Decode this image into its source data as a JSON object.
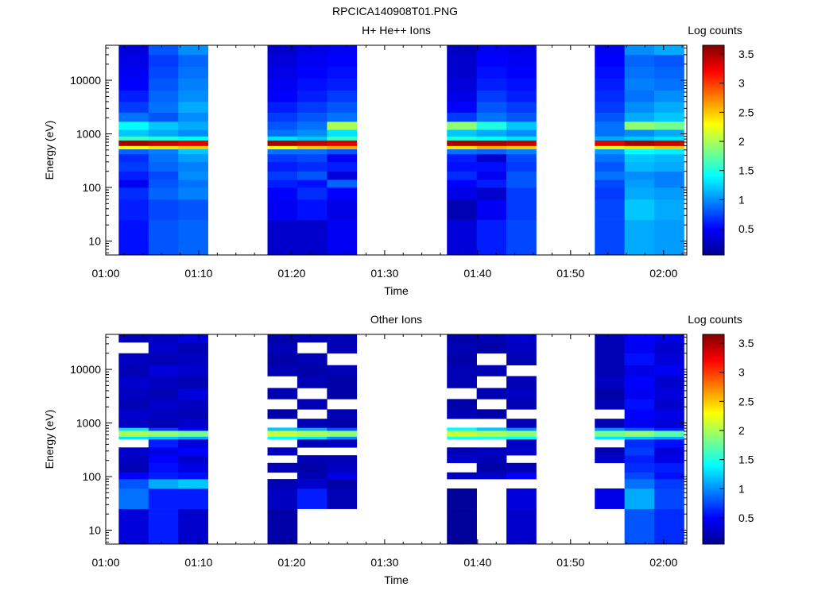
{
  "figure_title": "RPCICA140908T01.PNG",
  "colormap": [
    "#00008f",
    "#0000ff",
    "#0080ff",
    "#00ffff",
    "#80ff80",
    "#ffff00",
    "#ff8000",
    "#ff0000",
    "#800000"
  ],
  "chart_data": [
    {
      "type": "heatmap",
      "title": "H+ He++ Ions",
      "xlabel": "Time",
      "ylabel": "Energy (eV)",
      "x_ticks": [
        "01:00",
        "01:10",
        "01:20",
        "01:30",
        "01:40",
        "01:50",
        "02:00"
      ],
      "x_tick_minutes": [
        0,
        10,
        20,
        30,
        40,
        50,
        60
      ],
      "xlim_minutes": [
        0,
        62.5
      ],
      "y_scale": "log",
      "y_ticks": [
        "10",
        "100",
        "1000",
        "10000"
      ],
      "y_tick_values": [
        10,
        100,
        1000,
        10000
      ],
      "ylim": [
        5.5,
        45000
      ],
      "colorbar": {
        "label": "Log counts",
        "ticks": [
          "0.5",
          "1",
          "1.5",
          "2",
          "2.5",
          "3",
          "3.5"
        ],
        "tick_values": [
          0.5,
          1,
          1.5,
          2,
          2.5,
          3,
          3.5
        ],
        "range": [
          0.05,
          3.65
        ]
      },
      "time_bins": [
        {
          "start": 1.4,
          "end": 4.6
        },
        {
          "start": 4.6,
          "end": 7.8
        },
        {
          "start": 7.8,
          "end": 11.0
        },
        {
          "start": 17.4,
          "end": 20.6
        },
        {
          "start": 20.6,
          "end": 23.8
        },
        {
          "start": 23.8,
          "end": 27.0
        },
        {
          "start": 36.7,
          "end": 39.9
        },
        {
          "start": 39.9,
          "end": 43.1
        },
        {
          "start": 43.1,
          "end": 46.3
        },
        {
          "start": 52.6,
          "end": 55.8
        },
        {
          "start": 55.8,
          "end": 59.0
        },
        {
          "start": 59.0,
          "end": 62.2
        }
      ],
      "bands": [
        {
          "lo": 5.5,
          "hi": 25,
          "values": [
            0.55,
            0.8,
            0.85,
            0.3,
            0.3,
            0.45,
            0.35,
            0.6,
            0.75,
            0.75,
            1.1,
            1.05
          ]
        },
        {
          "lo": 25,
          "hi": 60,
          "values": [
            0.6,
            0.75,
            0.8,
            0.45,
            0.55,
            0.4,
            0.2,
            0.45,
            0.7,
            0.75,
            1.2,
            1.1
          ]
        },
        {
          "lo": 60,
          "hi": 100,
          "values": [
            0.65,
            0.85,
            0.95,
            0.5,
            0.65,
            0.5,
            0.4,
            0.3,
            0.7,
            0.7,
            1.1,
            1.05
          ]
        },
        {
          "lo": 100,
          "hi": 140,
          "values": [
            0.45,
            0.8,
            0.9,
            0.6,
            0.55,
            0.85,
            0.5,
            0.6,
            0.8,
            0.75,
            1.05,
            0.95
          ]
        },
        {
          "lo": 140,
          "hi": 200,
          "values": [
            0.6,
            0.75,
            1.0,
            0.7,
            0.8,
            0.35,
            0.65,
            0.45,
            0.8,
            0.9,
            1.0,
            0.95
          ]
        },
        {
          "lo": 200,
          "hi": 300,
          "values": [
            0.7,
            0.85,
            0.95,
            0.6,
            0.65,
            0.6,
            0.55,
            0.55,
            0.7,
            0.8,
            1.15,
            1.1
          ]
        },
        {
          "lo": 300,
          "hi": 420,
          "values": [
            0.65,
            0.9,
            1.05,
            0.7,
            0.75,
            0.45,
            0.6,
            0.3,
            0.75,
            0.9,
            1.2,
            1.15
          ]
        },
        {
          "lo": 420,
          "hi": 520,
          "values": [
            0.85,
            0.95,
            1.2,
            0.9,
            0.9,
            0.8,
            0.9,
            0.85,
            0.95,
            1.05,
            1.4,
            1.35
          ]
        },
        {
          "lo": 520,
          "hi": 600,
          "values": [
            2.3,
            2.4,
            2.5,
            2.3,
            2.5,
            2.6,
            2.4,
            2.6,
            2.5,
            2.2,
            2.4,
            2.5
          ]
        },
        {
          "lo": 600,
          "hi": 760,
          "values": [
            3.5,
            3.4,
            3.3,
            3.5,
            3.4,
            3.3,
            3.5,
            3.5,
            3.4,
            3.3,
            3.5,
            3.4
          ]
        },
        {
          "lo": 760,
          "hi": 900,
          "values": [
            1.6,
            1.5,
            1.4,
            1.3,
            1.2,
            1.6,
            1.5,
            1.4,
            1.3,
            1.1,
            1.2,
            1.3
          ]
        },
        {
          "lo": 900,
          "hi": 1200,
          "values": [
            1.2,
            1.1,
            1.0,
            0.9,
            1.0,
            1.3,
            1.2,
            1.1,
            1.0,
            0.9,
            1.0,
            1.1
          ]
        },
        {
          "lo": 1200,
          "hi": 1700,
          "values": [
            1.4,
            1.2,
            1.1,
            0.8,
            0.9,
            2.0,
            1.9,
            1.5,
            1.2,
            0.9,
            1.9,
            1.8
          ]
        },
        {
          "lo": 1700,
          "hi": 2500,
          "values": [
            0.9,
            0.8,
            1.0,
            0.7,
            0.8,
            0.9,
            0.7,
            0.9,
            0.8,
            0.8,
            1.1,
            1.2
          ]
        },
        {
          "lo": 2500,
          "hi": 4000,
          "values": [
            0.7,
            0.9,
            1.1,
            0.6,
            0.7,
            0.8,
            0.5,
            0.8,
            0.7,
            0.7,
            1.0,
            1.1
          ]
        },
        {
          "lo": 4000,
          "hi": 6500,
          "values": [
            0.6,
            0.85,
            1.0,
            0.5,
            0.6,
            0.7,
            0.4,
            0.7,
            0.6,
            0.65,
            0.9,
            1.0
          ]
        },
        {
          "lo": 6500,
          "hi": 11000,
          "values": [
            0.5,
            0.8,
            0.95,
            0.45,
            0.55,
            0.6,
            0.35,
            0.6,
            0.55,
            0.6,
            0.95,
            0.9
          ]
        },
        {
          "lo": 11000,
          "hi": 18000,
          "values": [
            0.45,
            0.75,
            0.9,
            0.4,
            0.5,
            0.55,
            0.3,
            0.55,
            0.5,
            0.55,
            0.9,
            0.85
          ]
        },
        {
          "lo": 18000,
          "hi": 30000,
          "values": [
            0.4,
            0.7,
            0.85,
            0.35,
            0.45,
            0.5,
            0.3,
            0.5,
            0.45,
            0.5,
            0.85,
            0.8
          ]
        },
        {
          "lo": 30000,
          "hi": 45000,
          "values": [
            0.35,
            0.8,
            1.0,
            0.3,
            0.4,
            0.45,
            0.25,
            0.45,
            0.4,
            0.45,
            1.0,
            1.1
          ]
        }
      ]
    },
    {
      "type": "heatmap",
      "title": "Other Ions",
      "xlabel": "Time",
      "ylabel": "Energy (eV)",
      "x_ticks": [
        "01:00",
        "01:10",
        "01:20",
        "01:30",
        "01:40",
        "01:50",
        "02:00"
      ],
      "x_tick_minutes": [
        0,
        10,
        20,
        30,
        40,
        50,
        60
      ],
      "xlim_minutes": [
        0,
        62.5
      ],
      "y_scale": "log",
      "y_ticks": [
        "10",
        "100",
        "1000",
        "10000"
      ],
      "y_tick_values": [
        10,
        100,
        1000,
        10000
      ],
      "ylim": [
        5.5,
        45000
      ],
      "colorbar": {
        "label": "Log counts",
        "ticks": [
          "0.5",
          "1",
          "1.5",
          "2",
          "2.5",
          "3",
          "3.5"
        ],
        "tick_values": [
          0.5,
          1,
          1.5,
          2,
          2.5,
          3,
          3.5
        ],
        "range": [
          0.05,
          3.65
        ]
      },
      "time_bins": [
        {
          "start": 1.4,
          "end": 4.6
        },
        {
          "start": 4.6,
          "end": 7.8
        },
        {
          "start": 7.8,
          "end": 11.0
        },
        {
          "start": 17.4,
          "end": 20.6
        },
        {
          "start": 20.6,
          "end": 23.8
        },
        {
          "start": 23.8,
          "end": 27.0
        },
        {
          "start": 36.7,
          "end": 39.9
        },
        {
          "start": 39.9,
          "end": 43.1
        },
        {
          "start": 43.1,
          "end": 46.3
        },
        {
          "start": 52.6,
          "end": 55.8
        },
        {
          "start": 55.8,
          "end": 59.0
        },
        {
          "start": 59.0,
          "end": 62.2
        }
      ],
      "bands": [
        {
          "lo": 5.5,
          "hi": 25,
          "values": [
            0.35,
            0.6,
            0.3,
            0.15,
            null,
            null,
            0.1,
            null,
            0.3,
            null,
            0.8,
            0.65
          ]
        },
        {
          "lo": 25,
          "hi": 60,
          "values": [
            0.9,
            0.6,
            0.6,
            0.25,
            0.6,
            0.2,
            0.1,
            null,
            0.35,
            0.4,
            1.1,
            0.75
          ]
        },
        {
          "lo": 60,
          "hi": 90,
          "values": [
            0.8,
            1.1,
            1.2,
            0.2,
            0.3,
            0.15,
            null,
            null,
            null,
            null,
            0.9,
            0.7
          ]
        },
        {
          "lo": 90,
          "hi": 120,
          "values": [
            0.5,
            0.6,
            0.55,
            null,
            0.2,
            0.4,
            0.25,
            0.3,
            0.5,
            null,
            0.75,
            0.55
          ]
        },
        {
          "lo": 120,
          "hi": 180,
          "values": [
            0.2,
            0.55,
            0.4,
            0.2,
            0.15,
            0.25,
            null,
            0.15,
            0.2,
            null,
            0.65,
            0.6
          ]
        },
        {
          "lo": 180,
          "hi": 250,
          "values": [
            0.25,
            0.5,
            0.3,
            null,
            0.2,
            0.2,
            0.3,
            0.2,
            null,
            0.3,
            0.6,
            0.4
          ]
        },
        {
          "lo": 250,
          "hi": 350,
          "values": [
            0.3,
            0.4,
            0.5,
            0.25,
            null,
            null,
            0.2,
            0.25,
            0.3,
            0.2,
            0.7,
            0.35
          ]
        },
        {
          "lo": 350,
          "hi": 500,
          "values": [
            null,
            0.6,
            0.35,
            null,
            0.2,
            0.25,
            null,
            null,
            0.25,
            null,
            0.65,
            0.55
          ]
        },
        {
          "lo": 500,
          "hi": 560,
          "values": [
            1.3,
            1.2,
            1.1,
            1.4,
            1.3,
            1.0,
            1.5,
            1.5,
            1.4,
            1.3,
            1.2,
            1.1
          ]
        },
        {
          "lo": 560,
          "hi": 720,
          "values": [
            2.0,
            1.9,
            1.8,
            2.1,
            2.0,
            1.9,
            2.1,
            2.0,
            1.9,
            1.8,
            1.9,
            1.7
          ]
        },
        {
          "lo": 720,
          "hi": 820,
          "values": [
            1.3,
            0.7,
            0.5,
            1.2,
            1.1,
            0.8,
            1.4,
            1.2,
            1.0,
            1.0,
            0.8,
            0.6
          ]
        },
        {
          "lo": 820,
          "hi": 1200,
          "values": [
            0.25,
            0.2,
            0.3,
            null,
            0.2,
            0.15,
            null,
            null,
            0.2,
            0.2,
            0.45,
            0.35
          ]
        },
        {
          "lo": 1200,
          "hi": 1800,
          "values": [
            0.3,
            0.25,
            0.2,
            0.15,
            null,
            0.2,
            0.2,
            0.15,
            null,
            null,
            0.5,
            0.4
          ]
        },
        {
          "lo": 1800,
          "hi": 2800,
          "values": [
            0.2,
            0.3,
            0.25,
            null,
            0.2,
            null,
            0.15,
            null,
            0.2,
            0.2,
            0.55,
            0.3
          ]
        },
        {
          "lo": 2800,
          "hi": 4500,
          "values": [
            0.25,
            0.2,
            0.35,
            0.2,
            null,
            0.15,
            null,
            0.2,
            0.25,
            0.15,
            0.45,
            0.35
          ]
        },
        {
          "lo": 4500,
          "hi": 7500,
          "values": [
            0.3,
            0.25,
            0.2,
            null,
            0.2,
            0.15,
            0.2,
            null,
            0.2,
            0.25,
            0.5,
            0.3
          ]
        },
        {
          "lo": 7500,
          "hi": 12000,
          "values": [
            0.2,
            0.35,
            0.3,
            0.2,
            0.15,
            0.2,
            0.2,
            0.2,
            null,
            0.2,
            0.4,
            0.45
          ]
        },
        {
          "lo": 12000,
          "hi": 20000,
          "values": [
            0.25,
            0.2,
            0.25,
            0.15,
            0.2,
            null,
            0.15,
            null,
            0.2,
            0.2,
            0.55,
            0.35
          ]
        },
        {
          "lo": 20000,
          "hi": 32000,
          "values": [
            null,
            0.3,
            0.2,
            0.2,
            null,
            0.2,
            0.2,
            0.15,
            0.25,
            0.2,
            0.45,
            0.3
          ]
        },
        {
          "lo": 32000,
          "hi": 45000,
          "values": [
            0.2,
            0.25,
            0.35,
            0.15,
            0.2,
            0.2,
            0.15,
            0.2,
            0.3,
            0.2,
            0.5,
            0.4
          ]
        }
      ]
    }
  ]
}
